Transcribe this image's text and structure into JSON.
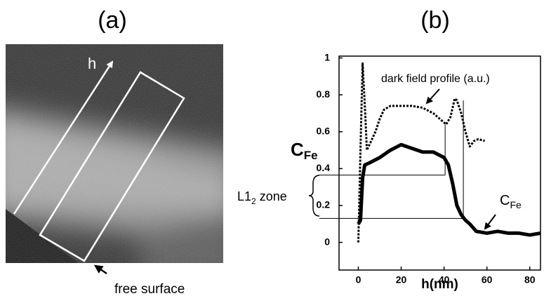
{
  "panel_a": {
    "label": "(a)",
    "axis_label": "h",
    "annotation": "free surface"
  },
  "panel_b": {
    "label": "(b)"
  },
  "chart_data": {
    "type": "line",
    "xlabel": "h(nm)",
    "ylabel": [
      "C",
      "Fe"
    ],
    "xlim": [
      -9,
      85
    ],
    "xticks": [
      0,
      20,
      40,
      60,
      80
    ],
    "ylim": [
      -0.15,
      1.01
    ],
    "yticks": [
      0,
      0.2,
      0.4,
      0.6,
      0.8,
      1
    ],
    "series": [
      {
        "color": "#000000",
        "style": "dotted",
        "x": [
          0,
          1,
          2,
          3,
          4,
          6,
          8,
          10,
          12,
          15,
          20,
          25,
          30,
          35,
          38,
          41,
          43,
          45,
          46,
          48,
          50,
          52,
          54,
          56,
          59
        ],
        "values": [
          0.0,
          0.5,
          0.97,
          0.75,
          0.5,
          0.55,
          0.6,
          0.67,
          0.72,
          0.74,
          0.74,
          0.74,
          0.73,
          0.7,
          0.67,
          0.64,
          0.68,
          0.78,
          0.77,
          0.7,
          0.6,
          0.52,
          0.55,
          0.56,
          0.55
        ]
      },
      {
        "color": "#000000",
        "style": "solid",
        "x": [
          0,
          1,
          2,
          3,
          5,
          10,
          15,
          20,
          25,
          30,
          35,
          40,
          42,
          44,
          46,
          48,
          50,
          52,
          55,
          60,
          65,
          70,
          75,
          80,
          85
        ],
        "values": [
          0.1,
          0.12,
          0.35,
          0.42,
          0.43,
          0.46,
          0.5,
          0.53,
          0.51,
          0.49,
          0.49,
          0.46,
          0.42,
          0.32,
          0.2,
          0.15,
          0.12,
          0.1,
          0.06,
          0.05,
          0.06,
          0.05,
          0.05,
          0.04,
          0.05
        ]
      }
    ],
    "hlines": [
      {
        "y": 0.365,
        "x_end": 40.5
      },
      {
        "y": 0.13,
        "x_end": 49
      }
    ],
    "vlines": [
      {
        "x": 40.5,
        "y": [
          0.365,
          0.64
        ]
      },
      {
        "x": 49,
        "y": [
          0.13,
          0.77
        ]
      }
    ],
    "annotations": [
      {
        "text": [
          "dark field profile (a.u.)"
        ]
      },
      {
        "text": [
          "C",
          "Fe"
        ]
      },
      {
        "text": [
          "L1",
          "2",
          " zone"
        ]
      }
    ]
  }
}
